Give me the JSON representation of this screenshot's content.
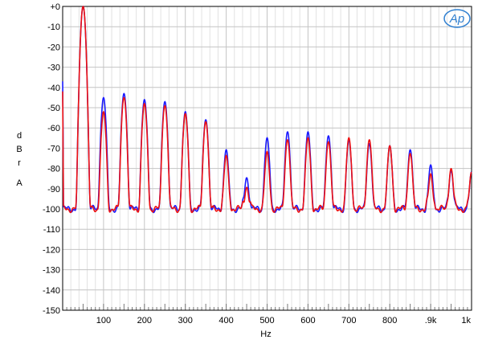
{
  "logo": {
    "text": "Ap",
    "color": "#2f7fd0"
  },
  "chart_data": {
    "type": "line",
    "title": "",
    "xlabel": "Hz",
    "ylabel": [
      "d",
      "B",
      "r",
      "",
      "A"
    ],
    "xlim": [
      0,
      1000
    ],
    "ylim": [
      -150,
      0
    ],
    "grid": true,
    "y_ticks": [
      0,
      -10,
      -20,
      -30,
      -40,
      -50,
      -60,
      -70,
      -80,
      -90,
      -100,
      -110,
      -120,
      -130,
      -140,
      -150
    ],
    "y_tick_labels": [
      "+0",
      "-10",
      "-20",
      "-30",
      "-40",
      "-50",
      "-60",
      "-70",
      "-80",
      "-90",
      "-100",
      "-110",
      "-120",
      "-130",
      "-140",
      "-150"
    ],
    "x_ticks": [
      100,
      200,
      300,
      400,
      500,
      600,
      700,
      800,
      900,
      1000
    ],
    "x_tick_labels": [
      "100",
      "200",
      "300",
      "400",
      "500",
      "600",
      "700",
      "800",
      ".9k",
      "1k"
    ],
    "floor": -100,
    "colors": {
      "blue": "#1a1aff",
      "red": "#ee1111"
    },
    "series": [
      {
        "color": "#1a1aff",
        "harmonics": [
          {
            "x": 50,
            "y": 0
          },
          {
            "x": 100,
            "y": -45
          },
          {
            "x": 150,
            "y": -43
          },
          {
            "x": 200,
            "y": -46
          },
          {
            "x": 250,
            "y": -47
          },
          {
            "x": 300,
            "y": -52
          },
          {
            "x": 350,
            "y": -56
          },
          {
            "x": 400,
            "y": -71
          },
          {
            "x": 450,
            "y": -86
          },
          {
            "x": 500,
            "y": -65
          },
          {
            "x": 550,
            "y": -62
          },
          {
            "x": 600,
            "y": -62
          },
          {
            "x": 650,
            "y": -64
          },
          {
            "x": 700,
            "y": -66
          },
          {
            "x": 750,
            "y": -68
          },
          {
            "x": 800,
            "y": -69
          },
          {
            "x": 850,
            "y": -71
          },
          {
            "x": 900,
            "y": -79
          },
          {
            "x": 950,
            "y": -82
          },
          {
            "x": 1000,
            "y": -83
          }
        ]
      },
      {
        "color": "#ee1111",
        "harmonics": [
          {
            "x": 50,
            "y": 0
          },
          {
            "x": 100,
            "y": -52
          },
          {
            "x": 150,
            "y": -45
          },
          {
            "x": 200,
            "y": -48
          },
          {
            "x": 250,
            "y": -49
          },
          {
            "x": 300,
            "y": -53
          },
          {
            "x": 350,
            "y": -57
          },
          {
            "x": 400,
            "y": -74
          },
          {
            "x": 450,
            "y": -92
          },
          {
            "x": 500,
            "y": -72
          },
          {
            "x": 550,
            "y": -66
          },
          {
            "x": 600,
            "y": -65
          },
          {
            "x": 650,
            "y": -67
          },
          {
            "x": 700,
            "y": -65
          },
          {
            "x": 750,
            "y": -66
          },
          {
            "x": 800,
            "y": -69
          },
          {
            "x": 850,
            "y": -73
          },
          {
            "x": 900,
            "y": -84
          },
          {
            "x": 950,
            "y": -81
          },
          {
            "x": 1000,
            "y": -83
          }
        ]
      }
    ]
  }
}
